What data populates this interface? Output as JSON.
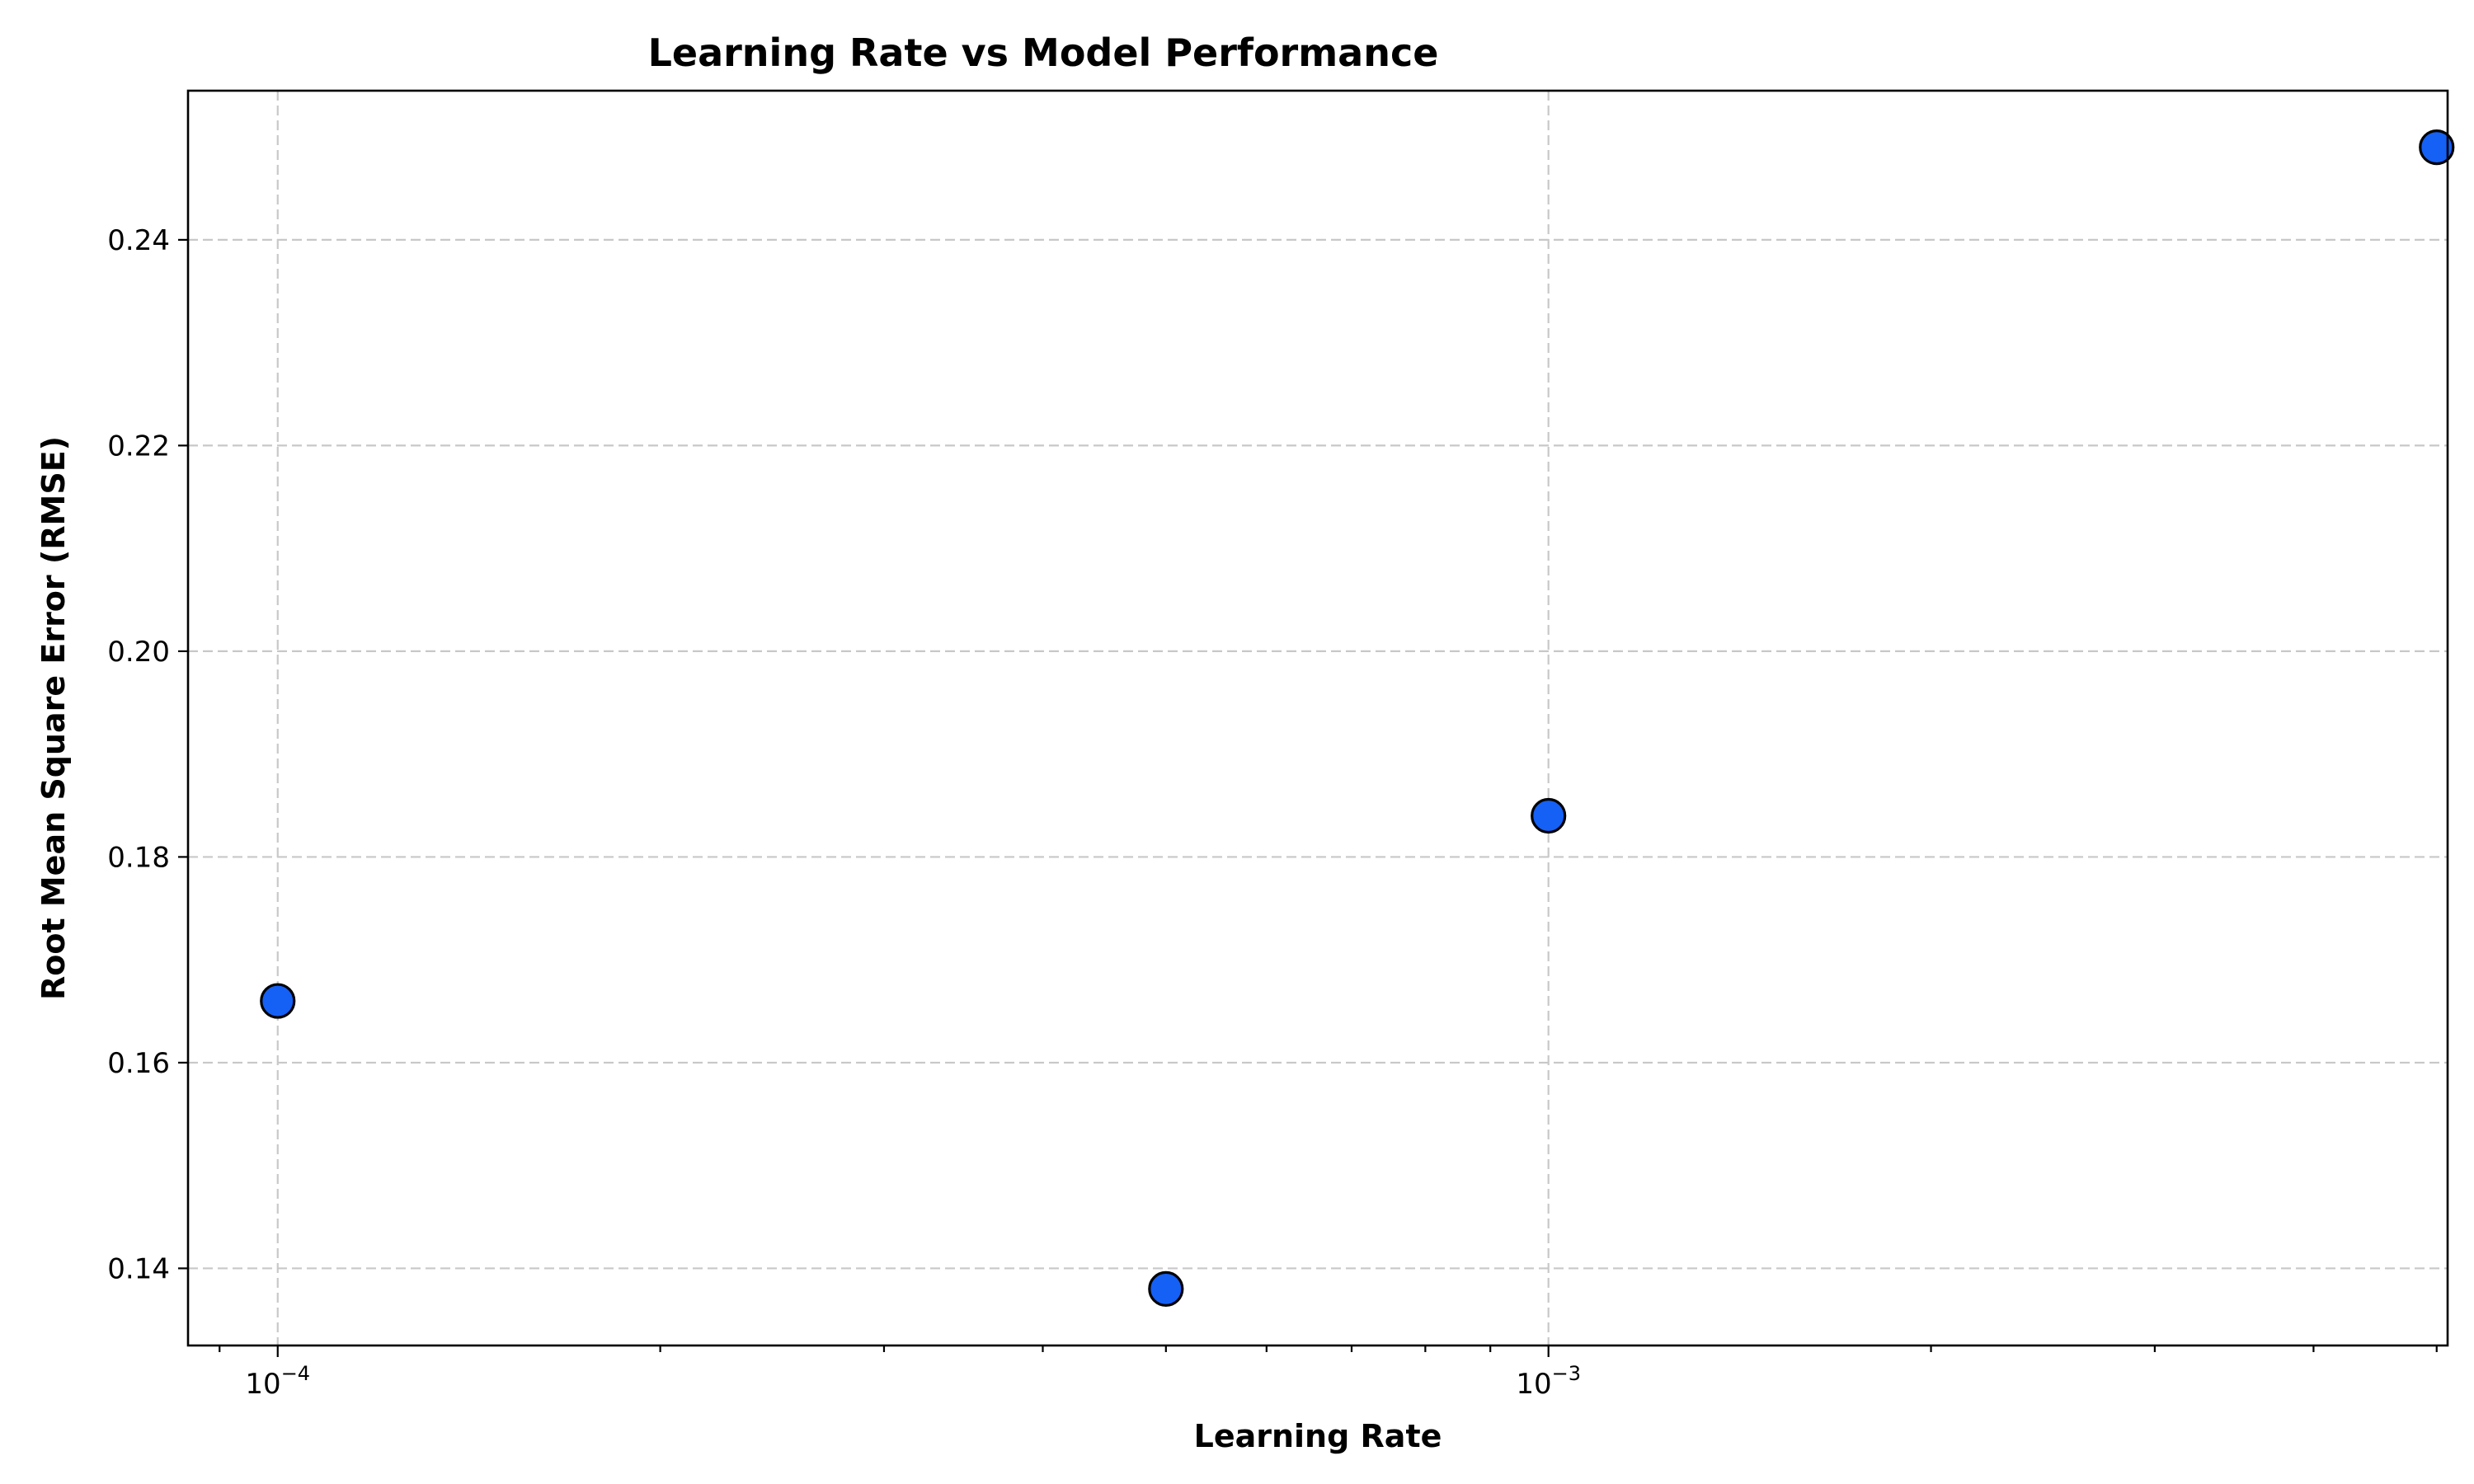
{
  "chart_data": {
    "type": "scatter",
    "title": "Learning Rate vs Model Performance",
    "xlabel": "Learning Rate",
    "ylabel": "Root Mean Square Error (RMSE)",
    "x_scale": "log",
    "xlim": [
      8.5e-05,
      0.0051
    ],
    "ylim": [
      0.1325,
      0.2545
    ],
    "x_ticks": [
      {
        "value": 0.0001,
        "base": "10",
        "exp": "−4"
      },
      {
        "value": 0.001,
        "base": "10",
        "exp": "−3"
      }
    ],
    "y_ticks": [
      {
        "value": 0.14,
        "label": "0.14"
      },
      {
        "value": 0.16,
        "label": "0.16"
      },
      {
        "value": 0.18,
        "label": "0.18"
      },
      {
        "value": 0.2,
        "label": "0.20"
      },
      {
        "value": 0.22,
        "label": "0.22"
      },
      {
        "value": 0.24,
        "label": "0.24"
      }
    ],
    "grid": true,
    "points": [
      {
        "x": 0.0001,
        "y": 0.166
      },
      {
        "x": 0.0005,
        "y": 0.138
      },
      {
        "x": 0.001,
        "y": 0.184
      },
      {
        "x": 0.005,
        "y": 0.249
      }
    ],
    "marker_color": "#1560f5",
    "marker_edge_color": "#000000"
  }
}
